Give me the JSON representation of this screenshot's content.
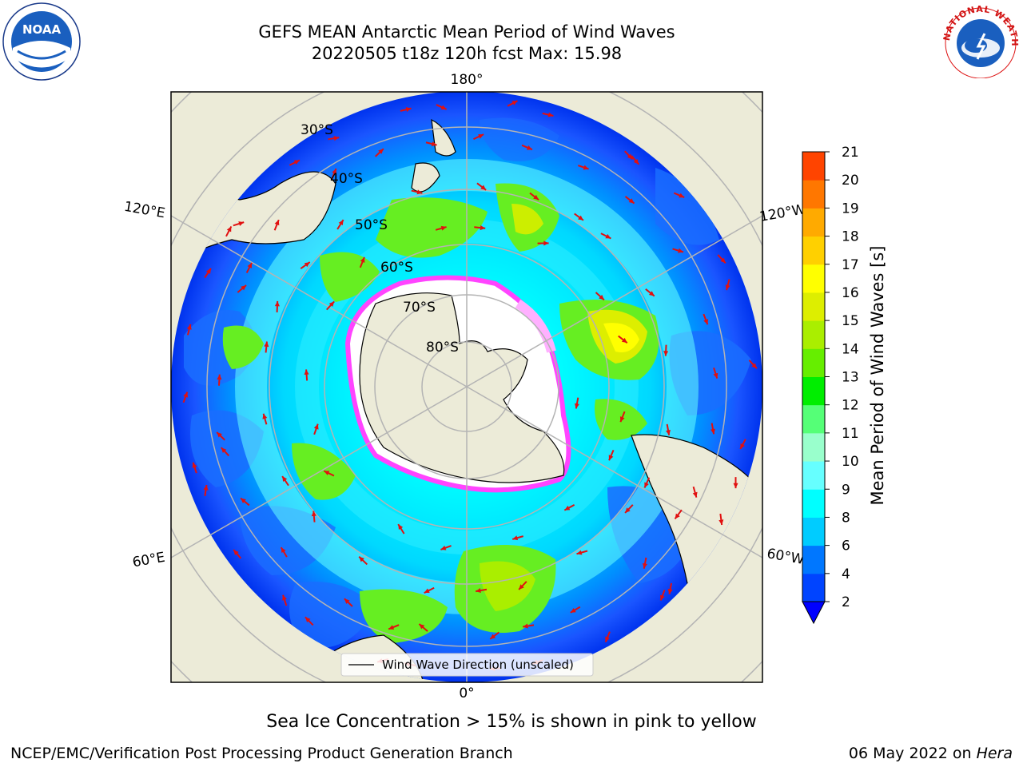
{
  "header": {
    "title_line1": "GEFS MEAN Antarctic Mean Period of Wind Waves",
    "title_line2": "20220505 t18z 120h fcst   Max: 15.98"
  },
  "map": {
    "projection": "south-polar-stereographic",
    "longitude_labels": {
      "top": "180°",
      "bottom": "0°",
      "upper_left": "120°E",
      "upper_right": "120°W",
      "lower_left": "60°E",
      "lower_right": "60°W"
    },
    "latitude_labels": [
      "30°S",
      "40°S",
      "50°S",
      "60°S",
      "70°S",
      "80°S"
    ],
    "land_color": "#ecebd8",
    "ocean_base_color": "#00ffff",
    "arrow_color": "#e11010",
    "legend_label": "Wind Wave Direction (unscaled)"
  },
  "colorbar": {
    "label": "Mean Period of Wind Waves [s]",
    "ticks": [
      "2",
      "4",
      "6",
      "8",
      "9",
      "10",
      "11",
      "12",
      "13",
      "14",
      "15",
      "16",
      "17",
      "18",
      "19",
      "20",
      "21"
    ],
    "colors": [
      "#0044ff",
      "#0077ff",
      "#00ccff",
      "#00ffff",
      "#66ffff",
      "#99ffcc",
      "#55ff77",
      "#00ee00",
      "#66ee00",
      "#aaee00",
      "#ddee00",
      "#ffff00",
      "#ffd000",
      "#ffaa00",
      "#ff7700",
      "#ff4400",
      "#ff0000"
    ],
    "extend_color": "#0000ff"
  },
  "footer": {
    "ice_note": "Sea Ice Concentration > 15% is shown in pink to yellow",
    "left": "NCEP/EMC/Verification Post Processing Product Generation Branch",
    "right_date": "06 May 2022 on",
    "right_host": "Hera"
  },
  "logos": {
    "noaa_text": "NOAA",
    "nws_text": "NATIONAL WEATHER SERVICE"
  }
}
